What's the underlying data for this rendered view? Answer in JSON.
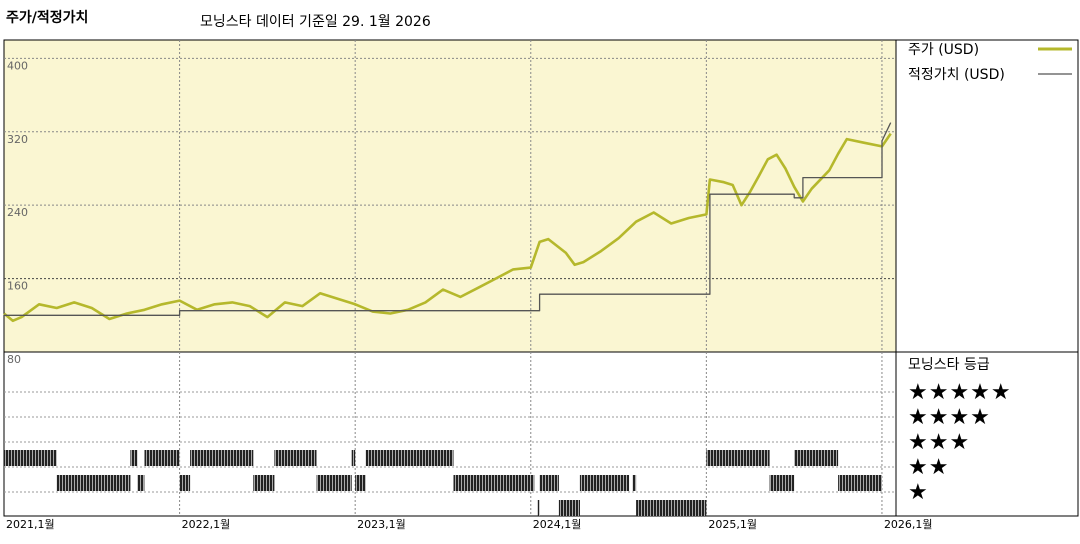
{
  "header": {
    "title": "주가/적정가치",
    "subtitle": "모닝스타 데이터 기준일 29. 1월 2026"
  },
  "legend": {
    "price_label": "주가 (USD)",
    "fair_label": "적정가치 (USD)",
    "rating_title": "모닝스타 등급",
    "star_rows": [
      "★★★★★",
      "★★★★",
      "★★★",
      "★★",
      "★"
    ]
  },
  "colors": {
    "price_line": "#b5b82c",
    "fair_line": "#555555",
    "panel_fill": "#faf6d2",
    "rating_bar": "#222222"
  },
  "chart_data": {
    "type": "line",
    "ylim": [
      80,
      420
    ],
    "y_ticks": [
      {
        "value": 400,
        "label": "400"
      },
      {
        "value": 320,
        "label": "320"
      },
      {
        "value": 240,
        "label": "240"
      },
      {
        "value": 160,
        "label": "160"
      },
      {
        "value": 80,
        "label": "80"
      }
    ],
    "x_range": [
      2021.0,
      2026.08
    ],
    "x_ticks": [
      {
        "value": 2021.0,
        "label": "2021,1월"
      },
      {
        "value": 2022.0,
        "label": "2022,1월"
      },
      {
        "value": 2023.0,
        "label": "2023,1월"
      },
      {
        "value": 2024.0,
        "label": "2024,1월"
      },
      {
        "value": 2025.0,
        "label": "2025,1월"
      },
      {
        "value": 2026.0,
        "label": "2026,1월"
      }
    ],
    "series": [
      {
        "name": "주가 (USD)",
        "x": [
          2021.0,
          2021.05,
          2021.1,
          2021.2,
          2021.3,
          2021.4,
          2021.5,
          2021.6,
          2021.7,
          2021.8,
          2021.9,
          2022.0,
          2022.1,
          2022.2,
          2022.3,
          2022.4,
          2022.5,
          2022.6,
          2022.7,
          2022.8,
          2022.9,
          2023.0,
          2023.1,
          2023.2,
          2023.3,
          2023.4,
          2023.5,
          2023.6,
          2023.7,
          2023.8,
          2023.9,
          2024.0,
          2024.05,
          2024.1,
          2024.2,
          2024.25,
          2024.3,
          2024.4,
          2024.5,
          2024.6,
          2024.7,
          2024.8,
          2024.9,
          2025.0,
          2025.02,
          2025.1,
          2025.15,
          2025.2,
          2025.25,
          2025.3,
          2025.35,
          2025.4,
          2025.45,
          2025.5,
          2025.55,
          2025.6,
          2025.7,
          2025.75,
          2025.8,
          2025.9,
          2026.0,
          2026.05
        ],
        "y": [
          122,
          114,
          118,
          132,
          128,
          134,
          128,
          116,
          122,
          126,
          132,
          136,
          126,
          132,
          134,
          130,
          118,
          134,
          130,
          144,
          138,
          132,
          124,
          122,
          126,
          134,
          148,
          140,
          150,
          160,
          170,
          172,
          200,
          203,
          188,
          175,
          178,
          190,
          204,
          222,
          232,
          220,
          226,
          230,
          268,
          265,
          262,
          240,
          255,
          272,
          290,
          295,
          280,
          260,
          244,
          258,
          278,
          296,
          312,
          308,
          304,
          318
        ]
      },
      {
        "name": "적정가치 (USD)",
        "x": [
          2021.0,
          2022.0,
          2022.0,
          2024.05,
          2024.05,
          2025.02,
          2025.02,
          2025.5,
          2025.5,
          2025.55,
          2025.55,
          2026.0,
          2026.0,
          2026.05
        ],
        "y": [
          120,
          120,
          125,
          125,
          143,
          143,
          252,
          252,
          248,
          248,
          270,
          270,
          310,
          330
        ]
      }
    ],
    "ratings": {
      "levels": [
        5,
        4,
        3,
        2,
        1
      ],
      "segments": [
        {
          "stars": 3,
          "from": 2021.0,
          "to": 2021.3
        },
        {
          "stars": 2,
          "from": 2021.3,
          "to": 2021.72
        },
        {
          "stars": 3,
          "from": 2021.72,
          "to": 2021.76
        },
        {
          "stars": 2,
          "from": 2021.76,
          "to": 2021.8
        },
        {
          "stars": 3,
          "from": 2021.8,
          "to": 2022.0
        },
        {
          "stars": 2,
          "from": 2022.0,
          "to": 2022.06
        },
        {
          "stars": 3,
          "from": 2022.06,
          "to": 2022.42
        },
        {
          "stars": 2,
          "from": 2022.42,
          "to": 2022.54
        },
        {
          "stars": 3,
          "from": 2022.54,
          "to": 2022.78
        },
        {
          "stars": 2,
          "from": 2022.78,
          "to": 2022.98
        },
        {
          "stars": 3,
          "from": 2022.98,
          "to": 2023.0
        },
        {
          "stars": 2,
          "from": 2023.0,
          "to": 2023.06
        },
        {
          "stars": 3,
          "from": 2023.06,
          "to": 2023.56
        },
        {
          "stars": 2,
          "from": 2023.56,
          "to": 2024.02
        },
        {
          "stars": 1,
          "from": 2024.04,
          "to": 2024.05
        },
        {
          "stars": 2,
          "from": 2024.05,
          "to": 2024.16
        },
        {
          "stars": 1,
          "from": 2024.16,
          "to": 2024.28
        },
        {
          "stars": 2,
          "from": 2024.28,
          "to": 2024.56
        },
        {
          "stars": 2,
          "from": 2024.58,
          "to": 2024.6
        },
        {
          "stars": 1,
          "from": 2024.6,
          "to": 2025.0
        },
        {
          "stars": 3,
          "from": 2025.0,
          "to": 2025.36
        },
        {
          "stars": 2,
          "from": 2025.36,
          "to": 2025.5
        },
        {
          "stars": 3,
          "from": 2025.5,
          "to": 2025.75
        },
        {
          "stars": 2,
          "from": 2025.75,
          "to": 2026.0
        }
      ]
    }
  }
}
